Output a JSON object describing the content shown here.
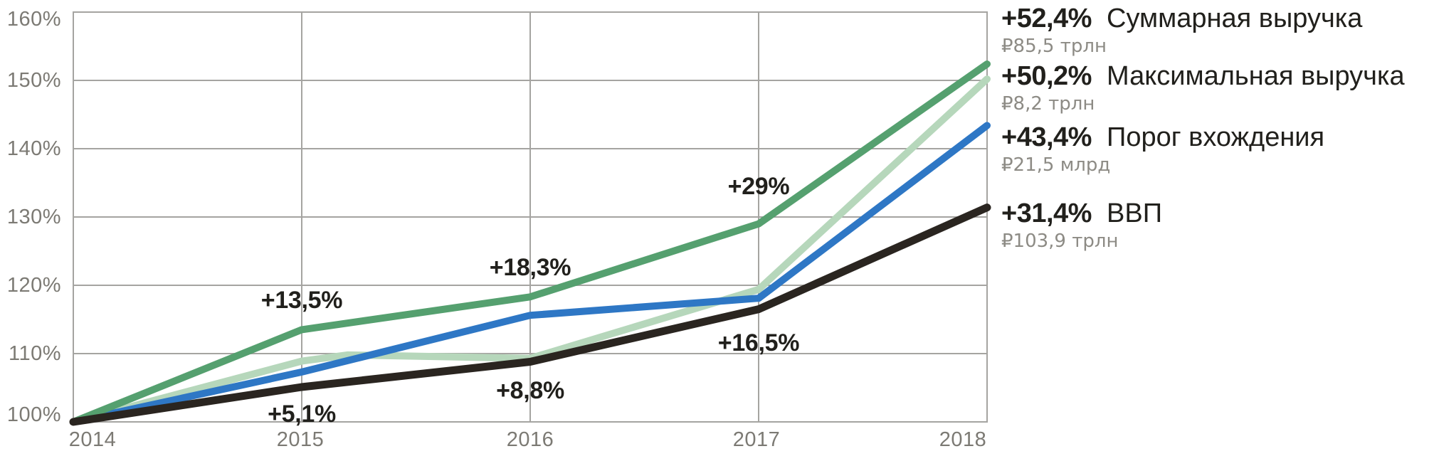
{
  "chart_data": {
    "type": "line",
    "title": "",
    "xlabel": "",
    "ylabel": "",
    "x": [
      2014,
      2015,
      2016,
      2017,
      2018
    ],
    "categories": [
      "2014",
      "2015",
      "2016",
      "2017",
      "2018"
    ],
    "ylim": [
      100,
      160
    ],
    "grid": true,
    "legend_position": "right",
    "y_ticks": [
      {
        "value": 100,
        "label": "100%"
      },
      {
        "value": 110,
        "label": "110%"
      },
      {
        "value": 120,
        "label": "120%"
      },
      {
        "value": 130,
        "label": "130%"
      },
      {
        "value": 140,
        "label": "140%"
      },
      {
        "value": 150,
        "label": "150%"
      },
      {
        "value": 160,
        "label": "160%"
      }
    ],
    "series": [
      {
        "id": "total-revenue",
        "name": "Суммарная выручка",
        "color": "#55a06f",
        "width": 10,
        "values": [
          100,
          113.5,
          118.3,
          129.0,
          152.4
        ]
      },
      {
        "id": "max-revenue",
        "name": "Максимальная выручка",
        "color": "#b6d7bb",
        "width": 10,
        "values": [
          100,
          108.9,
          109.3,
          119.4,
          150.2
        ],
        "extra_points": [
          {
            "x": 2015.2,
            "v": 109.8
          }
        ]
      },
      {
        "id": "entry-threshold",
        "name": "Порог вхождения",
        "color": "#2e77c5",
        "width": 10,
        "values": [
          100,
          107.3,
          115.6,
          118.1,
          143.4
        ]
      },
      {
        "id": "gdp",
        "name": "ВВП",
        "color": "#2a2520",
        "width": 11,
        "values": [
          100,
          105.1,
          108.8,
          116.5,
          131.4
        ]
      }
    ],
    "draw_order": [
      1,
      2,
      0,
      3
    ],
    "annotations": [
      {
        "text": "+13,5%",
        "x": 2015,
        "value": 113.5,
        "placement": "above",
        "gap": 22
      },
      {
        "text": "+18,3%",
        "x": 2016,
        "value": 118.3,
        "placement": "above",
        "gap": 22
      },
      {
        "text": "+29%",
        "x": 2017,
        "value": 129.0,
        "placement": "above",
        "gap": 34
      },
      {
        "text": "+5,1%",
        "x": 2015,
        "value": 105.1,
        "placement": "below",
        "gap": 19
      },
      {
        "text": "+8,8%",
        "x": 2016,
        "value": 108.8,
        "placement": "below",
        "gap": 21
      },
      {
        "text": "+16,5%",
        "x": 2017,
        "value": 116.5,
        "placement": "below",
        "gap": 28
      }
    ]
  },
  "legend": {
    "rows": [
      {
        "change": "+52,4%",
        "amount": "₽85,5 трлн",
        "label": "Суммарная выручка"
      },
      {
        "change": "+50,2%",
        "amount": "₽8,2 трлн",
        "label": "Максимальная выручка"
      },
      {
        "change": "+43,4%",
        "amount": "₽21,5 млрд",
        "label": "Порог вхождения"
      },
      {
        "change": "+31,4%",
        "amount": "₽103,9 трлн",
        "label": "ВВП"
      }
    ]
  },
  "colors": {
    "grid": "#a5a4a1",
    "axis_text": "#7c7a74",
    "annotation_text": "#21201c",
    "amount_text": "#8d8b85",
    "background": "#ffffff"
  }
}
